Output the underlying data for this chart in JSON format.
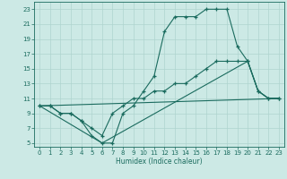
{
  "xlabel": "Humidex (Indice chaleur)",
  "xlim": [
    -0.5,
    23.5
  ],
  "ylim": [
    4.5,
    24.0
  ],
  "xticks": [
    0,
    1,
    2,
    3,
    4,
    5,
    6,
    7,
    8,
    9,
    10,
    11,
    12,
    13,
    14,
    15,
    16,
    17,
    18,
    19,
    20,
    21,
    22,
    23
  ],
  "yticks": [
    5,
    7,
    9,
    11,
    13,
    15,
    17,
    19,
    21,
    23
  ],
  "bg_color": "#cce9e5",
  "line_color": "#1a6b5e",
  "grid_color": "#aed4cf",
  "line1_x": [
    0,
    1,
    2,
    3,
    4,
    5,
    6,
    7,
    8,
    9,
    10,
    11,
    12,
    13,
    14,
    15,
    16,
    17,
    18,
    19,
    20,
    21,
    22,
    23
  ],
  "line1_y": [
    10,
    10,
    9,
    9,
    8,
    6,
    5,
    5,
    9,
    10,
    12,
    14,
    20,
    22,
    22,
    22,
    23,
    23,
    23,
    18,
    16,
    12,
    11,
    11
  ],
  "line2_x": [
    0,
    1,
    2,
    3,
    4,
    5,
    6,
    7,
    8,
    9,
    10,
    11,
    12,
    13,
    14,
    15,
    16,
    17,
    18,
    19,
    20,
    21,
    22,
    23
  ],
  "line2_y": [
    10,
    10,
    9,
    9,
    8,
    7,
    6,
    9,
    10,
    11,
    11,
    12,
    12,
    13,
    13,
    14,
    15,
    16,
    16,
    16,
    16,
    12,
    11,
    11
  ],
  "line3_x": [
    0,
    6,
    20,
    21,
    22,
    23
  ],
  "line3_y": [
    10,
    5,
    16,
    12,
    11,
    11
  ],
  "line4_x": [
    0,
    23
  ],
  "line4_y": [
    10,
    11
  ]
}
